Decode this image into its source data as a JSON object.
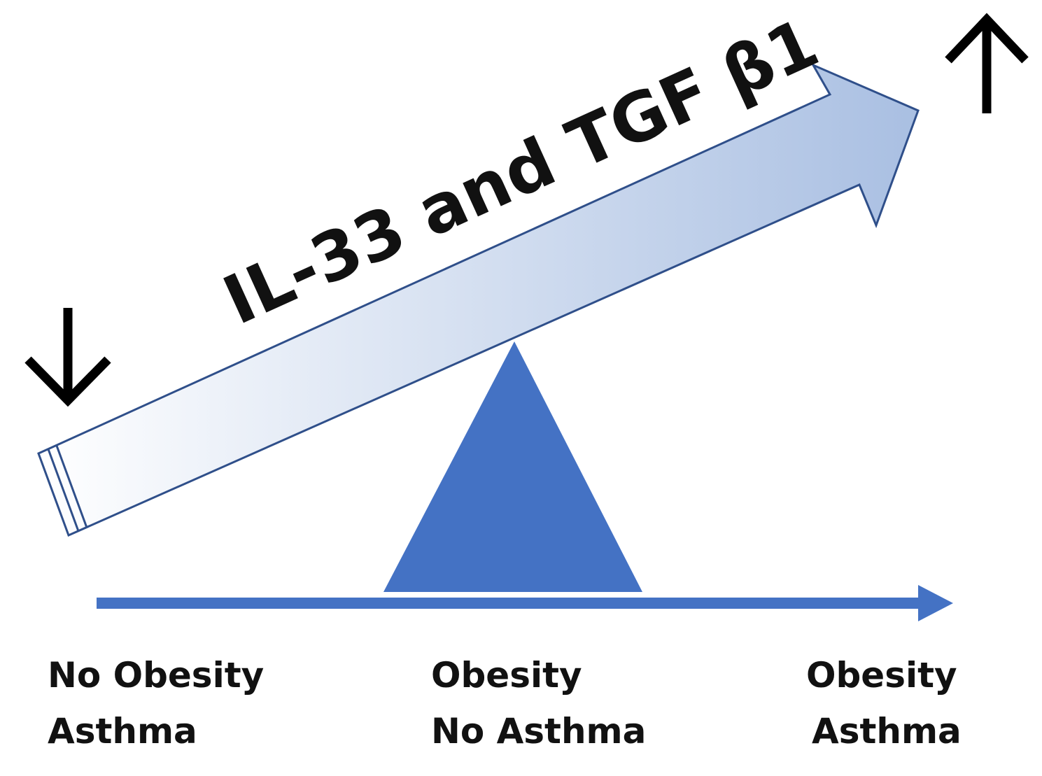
{
  "lever": {
    "label": "IL-33 and TGF β1"
  },
  "indicators": {
    "left": "decrease",
    "right": "increase"
  },
  "groups": [
    {
      "line1": "No Obesity",
      "line2": "Asthma"
    },
    {
      "line1": "Obesity",
      "line2": "No Asthma"
    },
    {
      "line1": "Obesity",
      "line2": "Asthma"
    }
  ],
  "colors": {
    "fulcrum": "#4472c4",
    "axis": "#4472c4",
    "lever_outline": "#2f4f8a",
    "lever_gradient_start": "#ffffff",
    "lever_gradient_end": "#a9bfe2",
    "indicator_arrows": "#000000"
  }
}
